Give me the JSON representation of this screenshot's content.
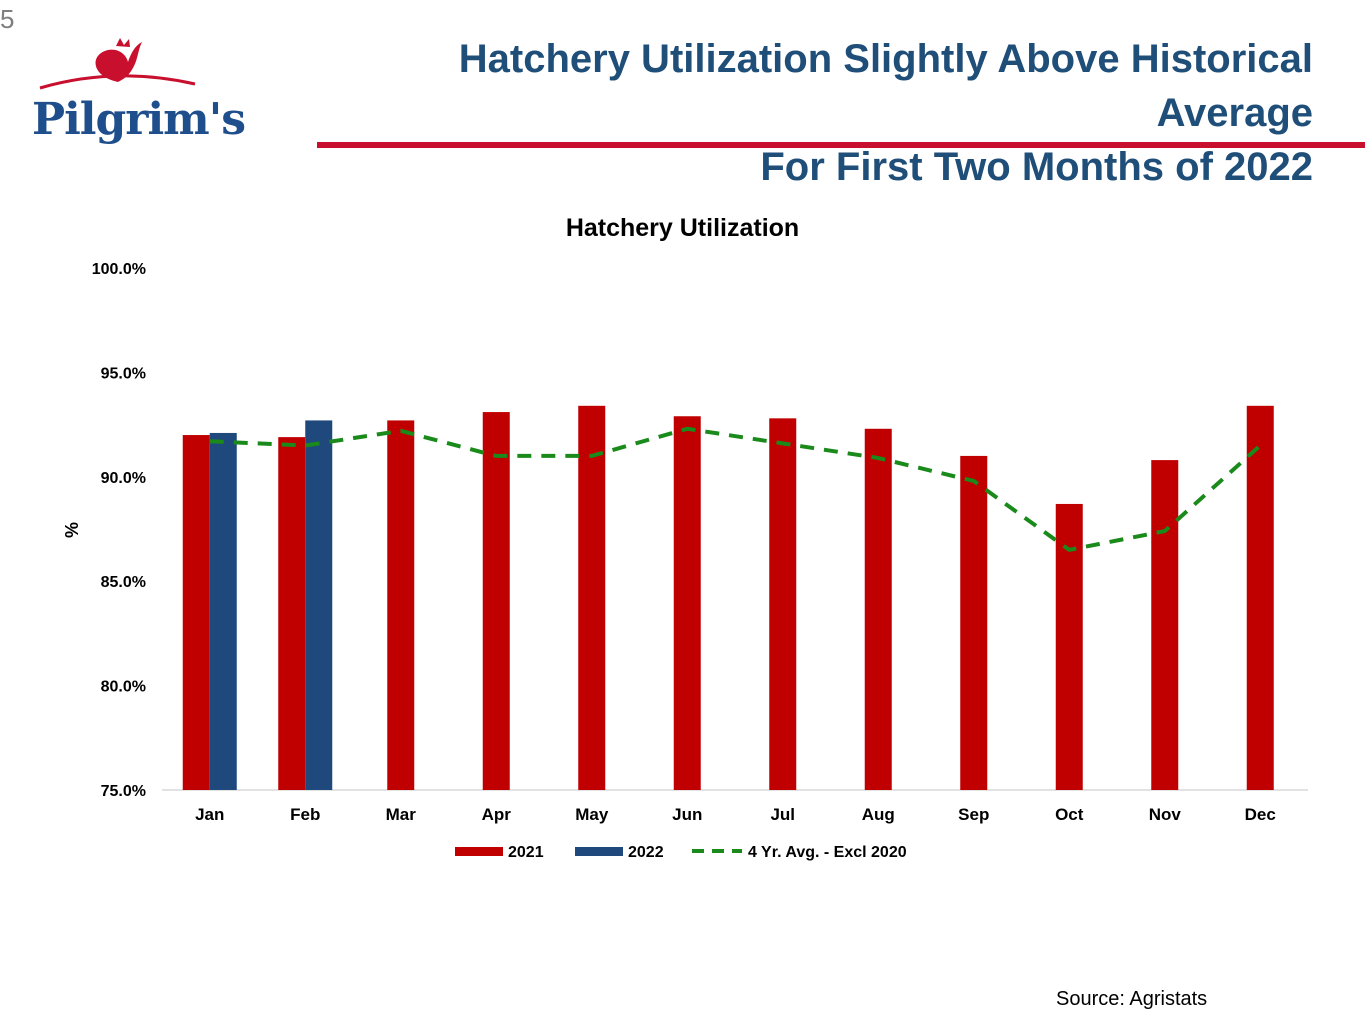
{
  "page": {
    "page_number": "5",
    "logo_text": "Pilgrim's",
    "headline_line1": "Hatchery Utilization Slightly Above Historical Average",
    "headline_line2": "For First Two Months of 2022",
    "source": "Source:  Agristats"
  },
  "colors": {
    "brand_blue": "#1f4e79",
    "accent_red": "#c8102e",
    "series_2021": "#c00000",
    "series_2022": "#1f497d",
    "series_avg": "#1a8a1a"
  },
  "chart_data": {
    "type": "bar",
    "title": "Hatchery Utilization",
    "xlabel": "",
    "ylabel": "%",
    "ylim": [
      75,
      100
    ],
    "yticks": [
      75,
      80,
      85,
      90,
      95,
      100
    ],
    "ytick_labels": [
      "75.0%",
      "80.0%",
      "85.0%",
      "90.0%",
      "95.0%",
      "100.0%"
    ],
    "grid": false,
    "legend_position": "bottom",
    "categories": [
      "Jan",
      "Feb",
      "Mar",
      "Apr",
      "May",
      "Jun",
      "Jul",
      "Aug",
      "Sep",
      "Oct",
      "Nov",
      "Dec"
    ],
    "series": [
      {
        "name": "2021",
        "kind": "bar",
        "color": "#c00000",
        "values": [
          92.0,
          91.9,
          92.7,
          93.1,
          93.4,
          92.9,
          92.8,
          92.3,
          91.0,
          88.7,
          90.8,
          93.4
        ]
      },
      {
        "name": "2022",
        "kind": "bar",
        "color": "#1f497d",
        "values": [
          92.1,
          92.7,
          null,
          null,
          null,
          null,
          null,
          null,
          null,
          null,
          null,
          null
        ]
      },
      {
        "name": "4 Yr. Avg. - Excl 2020",
        "kind": "line",
        "style": "dashed",
        "color": "#1a8a1a",
        "values": [
          91.7,
          91.5,
          92.2,
          91.0,
          91.0,
          92.3,
          91.6,
          90.9,
          89.8,
          86.5,
          87.4,
          91.5
        ]
      }
    ]
  }
}
